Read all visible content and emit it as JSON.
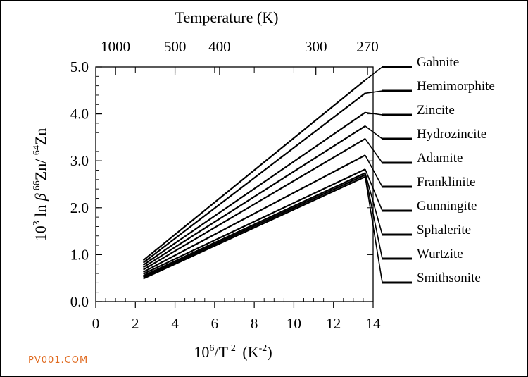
{
  "chart_data": {
    "type": "line",
    "title": "",
    "top_axis": {
      "label": "Temperature (K)",
      "tick_labels": [
        "1000",
        "500",
        "400",
        "300",
        "270"
      ],
      "tick_values_K": [
        1000,
        500,
        400,
        300,
        270
      ]
    },
    "xlabel": {
      "base": "10",
      "sup1": "6",
      "mid": "/T",
      "sup2": "2",
      "open": " (K",
      "sup3": "-2",
      "close": ")"
    },
    "ylabel": {
      "a": "10",
      "a_sup": "3",
      "b": " ln ",
      "beta": "β",
      "c_sup": "66",
      "c": "Zn/ ",
      "d_sup": "64",
      "d": "Zn"
    },
    "xlim": [
      0,
      14
    ],
    "ylim": [
      0,
      5
    ],
    "x_ticks": [
      0,
      2,
      4,
      6,
      8,
      10,
      12,
      14
    ],
    "x_tick_labels": [
      "0",
      "2",
      "4",
      "6",
      "8",
      "10",
      "12",
      "14"
    ],
    "y_ticks": [
      0,
      1,
      2,
      3,
      4,
      5
    ],
    "y_tick_labels": [
      "0.0",
      "1.0",
      "2.0",
      "3.0",
      "4.0",
      "5.0"
    ],
    "series": [
      {
        "name": "Gahnite",
        "x": [
          2.4,
          13.6
        ],
        "y": [
          0.88,
          4.72
        ],
        "legend_to": 5.0
      },
      {
        "name": "Hemimorphite",
        "x": [
          2.4,
          13.6
        ],
        "y": [
          0.83,
          4.44
        ],
        "legend_to": 4.58
      },
      {
        "name": "Zincite",
        "x": [
          2.4,
          13.6
        ],
        "y": [
          0.78,
          4.03
        ],
        "legend_to": 4.17
      },
      {
        "name": "Hydrozincite",
        "x": [
          2.4,
          13.6
        ],
        "y": [
          0.73,
          3.74
        ],
        "legend_to": 3.7
      },
      {
        "name": "Adamite",
        "x": [
          2.4,
          13.6
        ],
        "y": [
          0.68,
          3.47
        ],
        "legend_to": 3.23
      },
      {
        "name": "Franklinite",
        "x": [
          2.4,
          13.6
        ],
        "y": [
          0.63,
          3.12
        ],
        "legend_to": 2.6
      },
      {
        "name": "Gunningite",
        "x": [
          2.4,
          13.6
        ],
        "y": [
          0.59,
          2.82
        ],
        "legend_to": 2.08
      },
      {
        "name": "Sphalerite",
        "x": [
          2.4,
          13.6
        ],
        "y": [
          0.55,
          2.74
        ],
        "legend_to": 1.55
      },
      {
        "name": "Wurtzite",
        "x": [
          2.4,
          13.6
        ],
        "y": [
          0.52,
          2.7
        ],
        "legend_to": 1.0
      },
      {
        "name": "Smithsonite",
        "x": [
          2.4,
          13.6
        ],
        "y": [
          0.49,
          2.66
        ],
        "legend_to": 0.33
      }
    ],
    "grid": false,
    "legend": "right"
  },
  "watermark": "PV001.COM"
}
